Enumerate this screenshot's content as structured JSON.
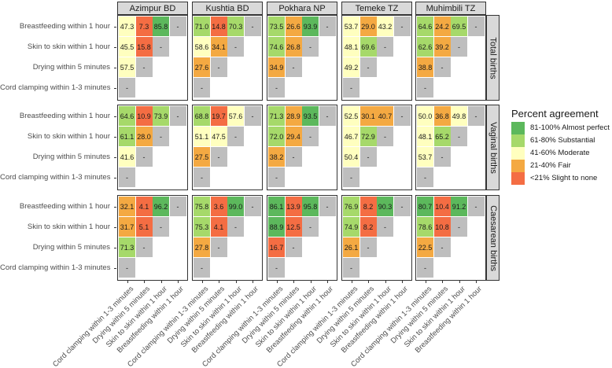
{
  "chart_data": {
    "type": "heatmap",
    "title": "",
    "facet_columns": [
      "Azimpur BD",
      "Kushtia BD",
      "Pokhara NP",
      "Temeke TZ",
      "Muhimbili TZ"
    ],
    "facet_rows": [
      "Total births",
      "Vaginal births",
      "Caesarean births"
    ],
    "y_categories": [
      "Breastfeeding within 1 hour",
      "Skin to skin within 1 hour",
      "Drying within 5 minutes",
      "Cord clamping within 1-3 minutes"
    ],
    "x_categories": [
      "Cord clamping within 1-3 minutes",
      "Drying within 5 minutes",
      "Skin to skin within 1 hour",
      "Breastfeeding within 1 hour"
    ],
    "missing_label": "-",
    "values": {
      "Total births": {
        "Azimpur BD": [
          [
            47.3,
            7.3,
            85.8
          ],
          [
            45.5,
            15.8
          ],
          [
            57.5
          ],
          []
        ],
        "Kushtia BD": [
          [
            71.0,
            14.8,
            70.3
          ],
          [
            58.6,
            34.1
          ],
          [
            27.6
          ],
          []
        ],
        "Pokhara NP": [
          [
            73.5,
            26.6,
            93.9
          ],
          [
            74.6,
            26.8
          ],
          [
            34.9
          ],
          []
        ],
        "Temeke TZ": [
          [
            53.7,
            29.0,
            43.2
          ],
          [
            48.1,
            69.6
          ],
          [
            49.2
          ],
          []
        ],
        "Muhimbili TZ": [
          [
            64.6,
            24.2,
            69.5
          ],
          [
            62.6,
            39.2
          ],
          [
            38.8
          ],
          []
        ]
      },
      "Vaginal births": {
        "Azimpur BD": [
          [
            64.6,
            10.9,
            73.9
          ],
          [
            61.1,
            28.0
          ],
          [
            41.6
          ],
          []
        ],
        "Kushtia BD": [
          [
            68.8,
            19.7,
            57.6
          ],
          [
            51.1,
            47.5
          ],
          [
            27.5
          ],
          []
        ],
        "Pokhara NP": [
          [
            71.3,
            28.9,
            93.5
          ],
          [
            72.0,
            29.4
          ],
          [
            38.2
          ],
          []
        ],
        "Temeke TZ": [
          [
            52.5,
            30.1,
            40.7
          ],
          [
            46.7,
            72.9
          ],
          [
            50.4
          ],
          []
        ],
        "Muhimbili TZ": [
          [
            50.0,
            36.8,
            49.8
          ],
          [
            48.1,
            65.2
          ],
          [
            53.7
          ],
          []
        ]
      },
      "Caesarean births": {
        "Azimpur BD": [
          [
            32.1,
            4.1,
            96.2
          ],
          [
            31.7,
            5.1
          ],
          [
            71.3
          ],
          []
        ],
        "Kushtia BD": [
          [
            75.8,
            3.6,
            99.0
          ],
          [
            75.3,
            4.1
          ],
          [
            27.8
          ],
          []
        ],
        "Pokhara NP": [
          [
            86.1,
            13.9,
            95.8
          ],
          [
            88.9,
            12.5
          ],
          [
            16.7
          ],
          []
        ],
        "Temeke TZ": [
          [
            76.9,
            8.2,
            90.3
          ],
          [
            74.9,
            8.2
          ],
          [
            26.1
          ],
          []
        ],
        "Muhimbili TZ": [
          [
            80.7,
            10.4,
            91.2
          ],
          [
            78.6,
            10.8
          ],
          [
            22.5
          ],
          []
        ]
      }
    },
    "legend": {
      "title": "Percent agreement",
      "placement": "right",
      "items": [
        {
          "label": "81-100% Almost perfect",
          "color": "#5cb85c"
        },
        {
          "label": "61-80% Substantial",
          "color": "#a6d96a"
        },
        {
          "label": "41-60% Moderate",
          "color": "#ffffbf"
        },
        {
          "label": "21-40% Fair",
          "color": "#f4a942"
        },
        {
          "label": "<21% Slight to none",
          "color": "#f46d43"
        }
      ]
    },
    "missing_color": "#bebebe"
  }
}
